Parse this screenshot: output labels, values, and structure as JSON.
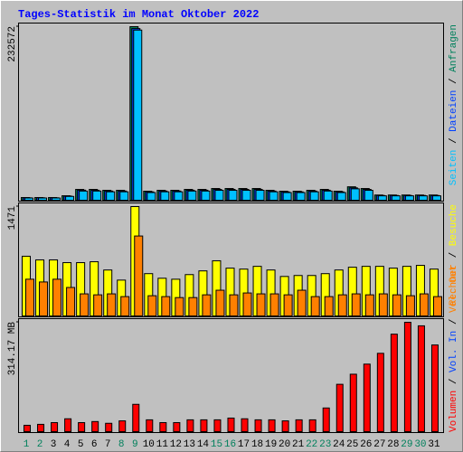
{
  "chart_data": [
    {
      "type": "bar",
      "title": "Tages-Statistik im Monat Oktober 2022",
      "series": [
        {
          "name": "Anfragen",
          "color": "#00805c",
          "values": [
            3600,
            3600,
            3600,
            6000,
            14500,
            14500,
            13300,
            13300,
            232572,
            12100,
            13300,
            13300,
            14500,
            14500,
            15700,
            15700,
            15700,
            15700,
            13300,
            12100,
            12100,
            13300,
            14500,
            12100,
            18000,
            15700,
            7000,
            7000,
            7000,
            7000,
            7000
          ]
        },
        {
          "name": "Dateien",
          "color": "#0040ff",
          "values": [
            3300,
            3300,
            3300,
            5500,
            13500,
            13400,
            12300,
            12300,
            230000,
            11200,
            12300,
            12300,
            13400,
            13400,
            14500,
            14500,
            14500,
            14500,
            12300,
            11200,
            11200,
            12300,
            13400,
            11200,
            16600,
            14500,
            6400,
            6400,
            6400,
            6400,
            6400
          ]
        },
        {
          "name": "Seiten",
          "color": "#00c0ff",
          "values": [
            3000,
            3000,
            3000,
            5100,
            12300,
            12300,
            11300,
            11300,
            228000,
            10300,
            11300,
            11300,
            12300,
            12300,
            13300,
            13300,
            13300,
            13300,
            11300,
            10300,
            10300,
            11300,
            12300,
            10300,
            15300,
            13300,
            5900,
            5900,
            5900,
            5900,
            5900
          ]
        }
      ],
      "ylim": [
        0,
        232572
      ],
      "yticks": [
        232572
      ],
      "legend_anchor": "top",
      "legend_separator": " / "
    },
    {
      "type": "bar",
      "series": [
        {
          "name": "Besuche",
          "color": "#ffff00",
          "values": [
            803,
            754,
            754,
            717,
            717,
            729,
            618,
            482,
            1471,
            569,
            507,
            494,
            556,
            606,
            742,
            643,
            630,
            667,
            618,
            531,
            544,
            544,
            569,
            618,
            655,
            667,
            667,
            643,
            667,
            680,
            630
          ]
        },
        {
          "name": "Rechner",
          "color": "#ff8000",
          "values": [
            494,
            457,
            494,
            383,
            297,
            284,
            297,
            260,
            1075,
            272,
            260,
            247,
            247,
            284,
            346,
            284,
            309,
            297,
            297,
            284,
            346,
            260,
            260,
            284,
            297,
            284,
            297,
            284,
            272,
            297,
            260
          ]
        }
      ],
      "ylim": [
        0,
        1471
      ],
      "yticks": [
        1471
      ],
      "legend_anchor": "top",
      "legend_separator": " / "
    },
    {
      "type": "bar",
      "categories": [
        "1",
        "2",
        "3",
        "4",
        "5",
        "6",
        "7",
        "8",
        "9",
        "10",
        "11",
        "12",
        "13",
        "14",
        "15",
        "16",
        "17",
        "18",
        "19",
        "20",
        "21",
        "22",
        "23",
        "24",
        "25",
        "26",
        "27",
        "28",
        "29",
        "30",
        "31"
      ],
      "category_colors": [
        "#00805c",
        "#00805c",
        "#000000",
        "#000000",
        "#000000",
        "#000000",
        "#000000",
        "#00805c",
        "#00805c",
        "#000000",
        "#000000",
        "#000000",
        "#000000",
        "#000000",
        "#00805c",
        "#00805c",
        "#000000",
        "#000000",
        "#000000",
        "#000000",
        "#000000",
        "#00805c",
        "#00805c",
        "#000000",
        "#000000",
        "#000000",
        "#000000",
        "#000000",
        "#00805c",
        "#00805c",
        "#000000"
      ],
      "series": [
        {
          "name": "Volumen",
          "color": "#ff0000",
          "values": [
            18.3,
            21,
            26,
            37,
            26,
            29,
            24,
            31,
            78.5,
            34,
            26,
            26,
            34,
            34,
            34,
            39,
            37,
            34,
            34,
            31,
            34,
            34,
            68,
            136,
            165,
            194,
            225,
            280,
            314.17,
            304,
            249
          ]
        },
        {
          "name": "Vol. In",
          "color": "#0040ff"
        },
        {
          "name": "Vol. Out",
          "color": "#ff8000"
        }
      ],
      "ylim": [
        0,
        314.17
      ],
      "yticks": [
        {
          "value": 314.17,
          "label": "314.17 MB"
        }
      ],
      "legend_anchor": "bottom",
      "legend_separator": " / "
    }
  ]
}
